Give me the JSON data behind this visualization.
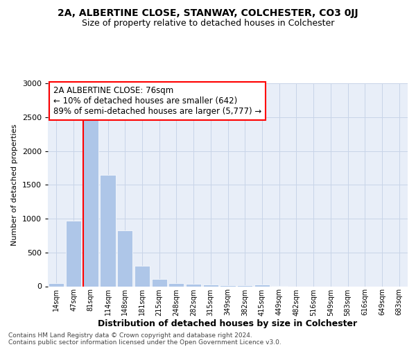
{
  "title": "2A, ALBERTINE CLOSE, STANWAY, COLCHESTER, CO3 0JJ",
  "subtitle": "Size of property relative to detached houses in Colchester",
  "xlabel": "Distribution of detached houses by size in Colchester",
  "ylabel": "Number of detached properties",
  "annotation_line1": "2A ALBERTINE CLOSE: 76sqm",
  "annotation_line2": "← 10% of detached houses are smaller (642)",
  "annotation_line3": "89% of semi-detached houses are larger (5,777) →",
  "bar_categories": [
    "14sqm",
    "47sqm",
    "81sqm",
    "114sqm",
    "148sqm",
    "181sqm",
    "215sqm",
    "248sqm",
    "282sqm",
    "315sqm",
    "349sqm",
    "382sqm",
    "415sqm",
    "449sqm",
    "482sqm",
    "516sqm",
    "549sqm",
    "583sqm",
    "616sqm",
    "649sqm",
    "683sqm"
  ],
  "bar_values": [
    50,
    970,
    2470,
    1650,
    830,
    300,
    110,
    50,
    40,
    30,
    20,
    15,
    30,
    5,
    0,
    0,
    0,
    0,
    0,
    0,
    0
  ],
  "bar_color": "#aec6e8",
  "red_line_x": 2,
  "ylim": [
    0,
    3000
  ],
  "yticks": [
    0,
    500,
    1000,
    1500,
    2000,
    2500,
    3000
  ],
  "grid_color": "#c8d4e8",
  "background_color": "#e8eef8",
  "footer_line1": "Contains HM Land Registry data © Crown copyright and database right 2024.",
  "footer_line2": "Contains public sector information licensed under the Open Government Licence v3.0."
}
